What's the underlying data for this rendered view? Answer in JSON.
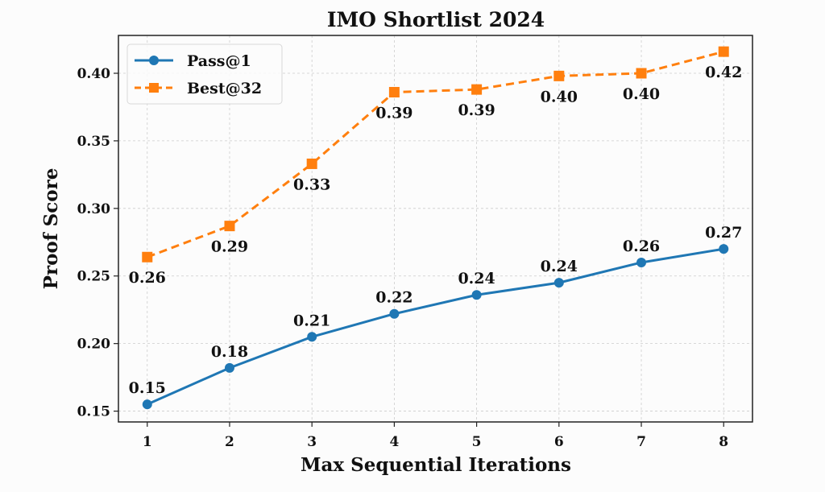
{
  "chart_data": {
    "type": "line",
    "title": "IMO Shortlist 2024",
    "xlabel": "Max Sequential Iterations",
    "ylabel": "Proof Score",
    "x": [
      1,
      2,
      3,
      4,
      5,
      6,
      7,
      8
    ],
    "xlim": [
      0.65,
      8.35
    ],
    "ylim": [
      0.142,
      0.428
    ],
    "xticks": [
      1,
      2,
      3,
      4,
      5,
      6,
      7,
      8
    ],
    "yticks": [
      0.15,
      0.2,
      0.25,
      0.3,
      0.35,
      0.4
    ],
    "ytick_labels": [
      "0.15",
      "0.20",
      "0.25",
      "0.30",
      "0.35",
      "0.40"
    ],
    "grid": true,
    "legend_position": "top-left",
    "series": [
      {
        "name": "Pass@1",
        "color": "#1f77b4",
        "marker": "circle",
        "linestyle": "solid",
        "values": [
          0.155,
          0.182,
          0.205,
          0.222,
          0.236,
          0.245,
          0.26,
          0.27
        ],
        "labels": [
          "0.15",
          "0.18",
          "0.21",
          "0.22",
          "0.24",
          "0.24",
          "0.26",
          "0.27"
        ],
        "label_position": "above"
      },
      {
        "name": "Best@32",
        "color": "#ff7f0e",
        "marker": "square",
        "linestyle": "dashed",
        "values": [
          0.264,
          0.287,
          0.333,
          0.386,
          0.388,
          0.398,
          0.4,
          0.416
        ],
        "labels": [
          "0.26",
          "0.29",
          "0.33",
          "0.39",
          "0.39",
          "0.40",
          "0.40",
          "0.42"
        ],
        "label_position": "below"
      }
    ]
  }
}
